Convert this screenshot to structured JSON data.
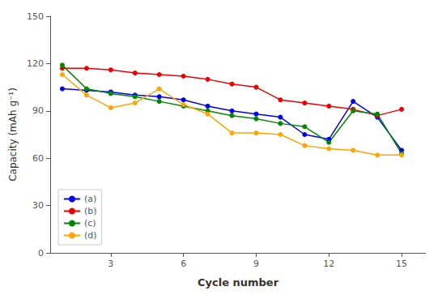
{
  "chart_data": {
    "type": "line",
    "xlabel": "Cycle number",
    "ylabel": "Capacity (mAh g⁻¹)",
    "x": [
      1,
      2,
      3,
      4,
      5,
      6,
      7,
      8,
      9,
      10,
      11,
      12,
      13,
      14,
      15
    ],
    "series": [
      {
        "name": "(a)",
        "color": "#0000EE",
        "values": [
          104,
          103,
          102,
          100,
          99,
          97,
          93,
          90,
          88,
          86,
          75,
          72,
          96,
          86,
          65
        ]
      },
      {
        "name": "(b)",
        "color": "#EE0000",
        "values": [
          117,
          117,
          116,
          114,
          113,
          112,
          110,
          107,
          105,
          97,
          95,
          93,
          91,
          87,
          91
        ]
      },
      {
        "name": "(c)",
        "color": "#008800",
        "values": [
          119,
          104,
          101,
          99,
          96,
          93,
          90,
          87,
          85,
          82,
          80,
          70,
          90,
          88,
          63
        ]
      },
      {
        "name": "(d)",
        "color": "#FFA500",
        "values": [
          113,
          100,
          92,
          95,
          104,
          94,
          88,
          76,
          76,
          75,
          68,
          66,
          65,
          62,
          62
        ]
      }
    ],
    "xlim": [
      0.5,
      16
    ],
    "xticks": [
      3,
      6,
      9,
      12,
      15
    ],
    "ylim": [
      0,
      150
    ],
    "yticks": [
      0,
      30,
      60,
      90,
      120,
      150
    ],
    "marker": "circle",
    "grid": false,
    "legend": "lower left"
  }
}
